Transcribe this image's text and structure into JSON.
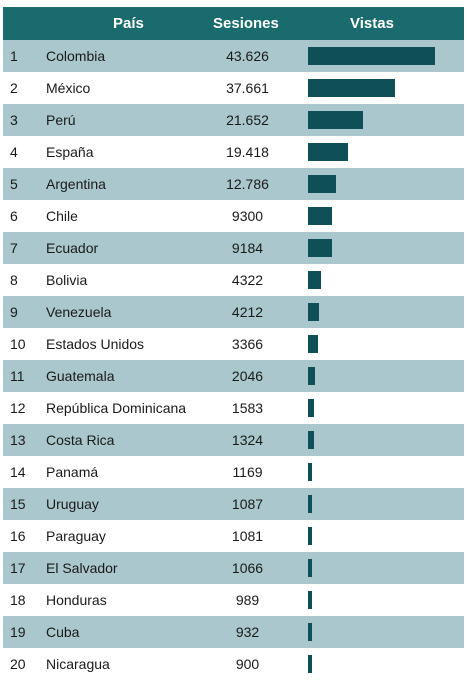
{
  "header": {
    "country": "País",
    "sessions": "Sesiones",
    "views": "Vistas"
  },
  "colors": {
    "header_bg": "#1a6b6e",
    "stripe": "#a9c7cc",
    "bar": "#0f4f57"
  },
  "chart_data": {
    "type": "table",
    "columns": [
      "País",
      "Sesiones",
      "Vistas"
    ],
    "rows": [
      {
        "rank": "1",
        "country": "Colombia",
        "sessions": "43.626",
        "views": 126
      },
      {
        "rank": "2",
        "country": "México",
        "sessions": "37.661",
        "views": 86
      },
      {
        "rank": "3",
        "country": "Perú",
        "sessions": "21.652",
        "views": 55
      },
      {
        "rank": "4",
        "country": "España",
        "sessions": "19.418",
        "views": 40
      },
      {
        "rank": "5",
        "country": "Argentina",
        "sessions": "12.786",
        "views": 28
      },
      {
        "rank": "6",
        "country": "Chile",
        "sessions": "9300",
        "views": 24
      },
      {
        "rank": "7",
        "country": "Ecuador",
        "sessions": "9184",
        "views": 24
      },
      {
        "rank": "8",
        "country": "Bolivia",
        "sessions": "4322",
        "views": 13
      },
      {
        "rank": "9",
        "country": "Venezuela",
        "sessions": "4212",
        "views": 11
      },
      {
        "rank": "10",
        "country": "Estados Unidos",
        "sessions": "3366",
        "views": 10
      },
      {
        "rank": "11",
        "country": "Guatemala",
        "sessions": "2046",
        "views": 7
      },
      {
        "rank": "12",
        "country": "República Dominicana",
        "sessions": "1583",
        "views": 6
      },
      {
        "rank": "13",
        "country": "Costa Rica",
        "sessions": "1324",
        "views": 6
      },
      {
        "rank": "14",
        "country": "Panamá",
        "sessions": "1169",
        "views": 4
      },
      {
        "rank": "15",
        "country": "Uruguay",
        "sessions": "1087",
        "views": 4
      },
      {
        "rank": "16",
        "country": "Paraguay",
        "sessions": "1081",
        "views": 4
      },
      {
        "rank": "17",
        "country": "El Salvador",
        "sessions": "1066",
        "views": 4
      },
      {
        "rank": "18",
        "country": "Honduras",
        "sessions": "989",
        "views": 4
      },
      {
        "rank": "19",
        "country": "Cuba",
        "sessions": "932",
        "views": 4
      },
      {
        "rank": "20",
        "country": "Nicaragua",
        "sessions": "900",
        "views": 4
      }
    ],
    "views_max": 126
  }
}
